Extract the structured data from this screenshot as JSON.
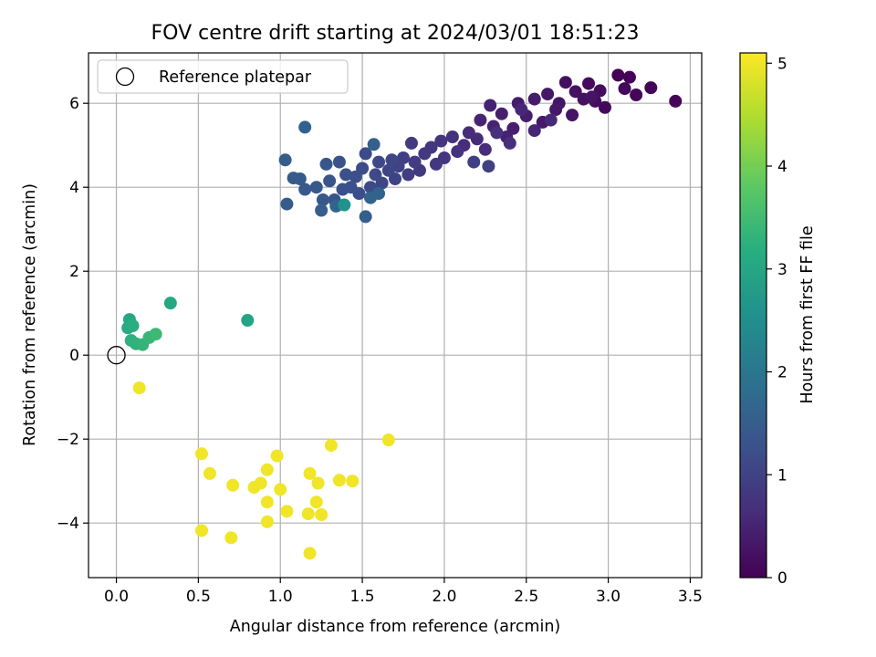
{
  "chart_data": {
    "type": "scatter",
    "title": "FOV centre drift starting at 2024/03/01 18:51:23",
    "xlabel": "Angular distance from reference (arcmin)",
    "ylabel": "Rotation from reference (arcmin)",
    "xlim": [
      -0.17,
      3.57
    ],
    "ylim": [
      -5.3,
      7.2
    ],
    "xticks": [
      0.0,
      0.5,
      1.0,
      1.5,
      2.0,
      2.5,
      3.0,
      3.5
    ],
    "xtick_labels": [
      "0.0",
      "0.5",
      "1.0",
      "1.5",
      "2.0",
      "2.5",
      "3.0",
      "3.5"
    ],
    "yticks": [
      -4,
      -2,
      0,
      2,
      4,
      6
    ],
    "ytick_labels": [
      "−4",
      "−2",
      "0",
      "2",
      "4",
      "6"
    ],
    "grid": true,
    "legend": {
      "placement": "top-left",
      "entries": [
        {
          "label": "Reference platepar",
          "marker": "open-circle",
          "x": 0.0,
          "y": 0.0
        }
      ]
    },
    "colorbar": {
      "label": "Hours from first FF file",
      "colormap": "viridis",
      "range": [
        0,
        5.1
      ],
      "ticks": [
        0,
        1,
        2,
        3,
        4,
        5
      ],
      "tick_labels": [
        "0",
        "1",
        "2",
        "3",
        "4",
        "5"
      ]
    },
    "points": [
      {
        "x": 3.06,
        "y": 6.67,
        "c": 0.02
      },
      {
        "x": 3.13,
        "y": 6.62,
        "c": 0.03
      },
      {
        "x": 3.41,
        "y": 6.05,
        "c": 0.05
      },
      {
        "x": 3.26,
        "y": 6.37,
        "c": 0.06
      },
      {
        "x": 3.17,
        "y": 6.2,
        "c": 0.08
      },
      {
        "x": 3.1,
        "y": 6.35,
        "c": 0.1
      },
      {
        "x": 2.98,
        "y": 5.9,
        "c": 0.12
      },
      {
        "x": 2.88,
        "y": 6.47,
        "c": 0.14
      },
      {
        "x": 2.95,
        "y": 6.3,
        "c": 0.16
      },
      {
        "x": 2.92,
        "y": 6.05,
        "c": 0.18
      },
      {
        "x": 2.74,
        "y": 6.5,
        "c": 0.2
      },
      {
        "x": 2.8,
        "y": 6.28,
        "c": 0.22
      },
      {
        "x": 2.85,
        "y": 6.1,
        "c": 0.24
      },
      {
        "x": 2.78,
        "y": 5.72,
        "c": 0.26
      },
      {
        "x": 2.9,
        "y": 6.15,
        "c": 0.28
      },
      {
        "x": 2.7,
        "y": 6.0,
        "c": 0.3
      },
      {
        "x": 2.63,
        "y": 6.22,
        "c": 0.32
      },
      {
        "x": 2.68,
        "y": 5.85,
        "c": 0.34
      },
      {
        "x": 2.6,
        "y": 5.55,
        "c": 0.36
      },
      {
        "x": 2.55,
        "y": 6.1,
        "c": 0.38
      },
      {
        "x": 2.45,
        "y": 6.0,
        "c": 0.4
      },
      {
        "x": 2.5,
        "y": 5.7,
        "c": 0.42
      },
      {
        "x": 2.42,
        "y": 5.4,
        "c": 0.44
      },
      {
        "x": 2.35,
        "y": 5.75,
        "c": 0.46
      },
      {
        "x": 2.38,
        "y": 5.2,
        "c": 0.48
      },
      {
        "x": 2.28,
        "y": 5.95,
        "c": 0.5
      },
      {
        "x": 2.3,
        "y": 5.45,
        "c": 0.52
      },
      {
        "x": 2.22,
        "y": 5.6,
        "c": 0.54
      },
      {
        "x": 2.55,
        "y": 5.35,
        "c": 0.56
      },
      {
        "x": 2.47,
        "y": 5.85,
        "c": 0.58
      },
      {
        "x": 2.65,
        "y": 5.6,
        "c": 0.6
      },
      {
        "x": 2.2,
        "y": 5.15,
        "c": 0.62
      },
      {
        "x": 2.15,
        "y": 5.3,
        "c": 0.64
      },
      {
        "x": 2.12,
        "y": 5.0,
        "c": 0.66
      },
      {
        "x": 2.25,
        "y": 4.9,
        "c": 0.68
      },
      {
        "x": 2.4,
        "y": 5.05,
        "c": 0.7
      },
      {
        "x": 2.32,
        "y": 5.3,
        "c": 0.72
      },
      {
        "x": 2.05,
        "y": 5.2,
        "c": 0.74
      },
      {
        "x": 2.08,
        "y": 4.85,
        "c": 0.76
      },
      {
        "x": 1.98,
        "y": 5.1,
        "c": 0.78
      },
      {
        "x": 2.0,
        "y": 4.7,
        "c": 0.8
      },
      {
        "x": 1.92,
        "y": 4.95,
        "c": 0.82
      },
      {
        "x": 1.95,
        "y": 4.55,
        "c": 0.84
      },
      {
        "x": 1.88,
        "y": 4.8,
        "c": 0.86
      },
      {
        "x": 1.85,
        "y": 4.4,
        "c": 0.88
      },
      {
        "x": 1.8,
        "y": 5.05,
        "c": 0.9
      },
      {
        "x": 1.82,
        "y": 4.6,
        "c": 0.92
      },
      {
        "x": 1.78,
        "y": 4.3,
        "c": 0.94
      },
      {
        "x": 2.18,
        "y": 4.6,
        "c": 0.96
      },
      {
        "x": 2.27,
        "y": 4.5,
        "c": 0.98
      },
      {
        "x": 1.75,
        "y": 4.7,
        "c": 1.0
      },
      {
        "x": 1.72,
        "y": 4.5,
        "c": 1.02
      },
      {
        "x": 1.7,
        "y": 4.2,
        "c": 1.04
      },
      {
        "x": 1.68,
        "y": 4.65,
        "c": 1.06
      },
      {
        "x": 1.66,
        "y": 4.4,
        "c": 1.08
      },
      {
        "x": 1.62,
        "y": 4.1,
        "c": 1.1
      },
      {
        "x": 1.6,
        "y": 4.6,
        "c": 1.12
      },
      {
        "x": 1.58,
        "y": 4.3,
        "c": 1.14
      },
      {
        "x": 1.55,
        "y": 4.0,
        "c": 1.16
      },
      {
        "x": 1.52,
        "y": 4.8,
        "c": 1.18
      },
      {
        "x": 1.5,
        "y": 4.45,
        "c": 1.2
      },
      {
        "x": 1.48,
        "y": 3.85,
        "c": 1.22
      },
      {
        "x": 1.46,
        "y": 4.25,
        "c": 1.24
      },
      {
        "x": 1.43,
        "y": 4.0,
        "c": 1.26
      },
      {
        "x": 1.4,
        "y": 4.3,
        "c": 1.28
      },
      {
        "x": 1.38,
        "y": 3.95,
        "c": 1.3
      },
      {
        "x": 1.36,
        "y": 4.6,
        "c": 1.32
      },
      {
        "x": 1.33,
        "y": 3.7,
        "c": 1.34
      },
      {
        "x": 1.3,
        "y": 4.15,
        "c": 1.36
      },
      {
        "x": 1.28,
        "y": 4.55,
        "c": 1.38
      },
      {
        "x": 1.26,
        "y": 3.7,
        "c": 1.4
      },
      {
        "x": 1.22,
        "y": 4.0,
        "c": 1.42
      },
      {
        "x": 1.15,
        "y": 3.95,
        "c": 1.44
      },
      {
        "x": 1.12,
        "y": 4.2,
        "c": 1.46
      },
      {
        "x": 1.08,
        "y": 4.22,
        "c": 1.48
      },
      {
        "x": 1.04,
        "y": 3.6,
        "c": 1.5
      },
      {
        "x": 1.03,
        "y": 4.65,
        "c": 1.52
      },
      {
        "x": 1.25,
        "y": 3.45,
        "c": 1.54
      },
      {
        "x": 1.52,
        "y": 3.3,
        "c": 1.56
      },
      {
        "x": 1.57,
        "y": 5.02,
        "c": 1.58
      },
      {
        "x": 1.15,
        "y": 5.43,
        "c": 1.6
      },
      {
        "x": 1.55,
        "y": 3.75,
        "c": 1.62
      },
      {
        "x": 1.6,
        "y": 3.85,
        "c": 1.64
      },
      {
        "x": 1.34,
        "y": 3.55,
        "c": 1.66
      },
      {
        "x": 1.39,
        "y": 3.58,
        "c": 2.6
      },
      {
        "x": 0.08,
        "y": 0.85,
        "c": 3.1
      },
      {
        "x": 0.33,
        "y": 1.24,
        "c": 3.05
      },
      {
        "x": 0.8,
        "y": 0.83,
        "c": 3.0
      },
      {
        "x": 0.07,
        "y": 0.65,
        "c": 3.15
      },
      {
        "x": 0.1,
        "y": 0.7,
        "c": 3.2
      },
      {
        "x": 0.09,
        "y": 0.35,
        "c": 3.25
      },
      {
        "x": 0.12,
        "y": 0.27,
        "c": 3.3
      },
      {
        "x": 0.16,
        "y": 0.25,
        "c": 3.35
      },
      {
        "x": 0.2,
        "y": 0.42,
        "c": 3.4
      },
      {
        "x": 0.24,
        "y": 0.5,
        "c": 3.45
      },
      {
        "x": 0.14,
        "y": -0.78,
        "c": 5.0
      },
      {
        "x": 0.52,
        "y": -2.35,
        "c": 5.0
      },
      {
        "x": 0.57,
        "y": -2.82,
        "c": 5.0
      },
      {
        "x": 0.52,
        "y": -4.18,
        "c": 5.0
      },
      {
        "x": 0.7,
        "y": -4.35,
        "c": 5.0
      },
      {
        "x": 0.71,
        "y": -3.1,
        "c": 5.0
      },
      {
        "x": 0.84,
        "y": -3.15,
        "c": 5.0
      },
      {
        "x": 0.88,
        "y": -3.05,
        "c": 5.0
      },
      {
        "x": 0.92,
        "y": -2.73,
        "c": 5.0
      },
      {
        "x": 0.92,
        "y": -3.5,
        "c": 5.0
      },
      {
        "x": 0.92,
        "y": -3.97,
        "c": 5.0
      },
      {
        "x": 0.98,
        "y": -2.4,
        "c": 5.0
      },
      {
        "x": 1.0,
        "y": -3.2,
        "c": 5.0
      },
      {
        "x": 1.04,
        "y": -3.72,
        "c": 5.0
      },
      {
        "x": 1.18,
        "y": -2.82,
        "c": 5.0
      },
      {
        "x": 1.17,
        "y": -3.78,
        "c": 5.0
      },
      {
        "x": 1.18,
        "y": -4.72,
        "c": 5.0
      },
      {
        "x": 1.22,
        "y": -3.5,
        "c": 5.0
      },
      {
        "x": 1.23,
        "y": -3.05,
        "c": 5.0
      },
      {
        "x": 1.25,
        "y": -3.8,
        "c": 5.0
      },
      {
        "x": 1.31,
        "y": -2.15,
        "c": 5.0
      },
      {
        "x": 1.36,
        "y": -2.98,
        "c": 5.0
      },
      {
        "x": 1.44,
        "y": -3.0,
        "c": 5.0
      },
      {
        "x": 1.66,
        "y": -2.02,
        "c": 5.0
      }
    ]
  }
}
